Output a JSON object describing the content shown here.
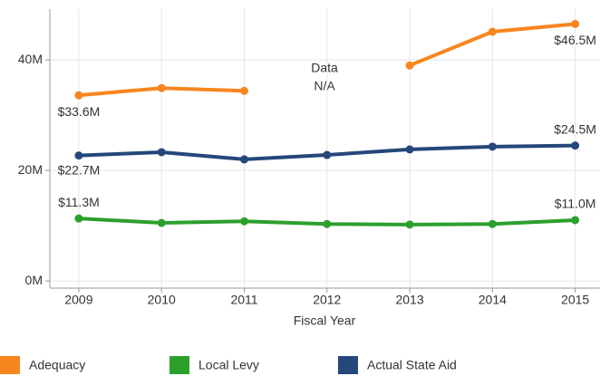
{
  "chart_data": {
    "type": "line",
    "x_label": "Fiscal Year",
    "x": [
      2009,
      2010,
      2011,
      2012,
      2013,
      2014,
      2015
    ],
    "xlim": [
      2008.65,
      2015.3
    ],
    "xticks": [
      2009,
      2010,
      2011,
      2012,
      2013,
      2014,
      2015
    ],
    "ylim": [
      -1.3,
      49.2
    ],
    "yticks": [
      {
        "value": 0,
        "label": "0M"
      },
      {
        "value": 20,
        "label": "20M"
      },
      {
        "value": 40,
        "label": "40M"
      }
    ],
    "grid": true,
    "legend": "bottom",
    "annotation": [
      "Data",
      "N/A"
    ],
    "series": [
      {
        "name": "Adequacy",
        "color": "#f7861f",
        "values": [
          33.6,
          34.9,
          34.4,
          null,
          39.0,
          45.1,
          46.5
        ],
        "value_labels": [
          "$33.6M",
          null,
          null,
          null,
          null,
          null,
          "$46.5M"
        ]
      },
      {
        "name": "Local Levy",
        "color": "#2ca02c",
        "values": [
          11.3,
          10.5,
          10.8,
          10.3,
          10.2,
          10.3,
          11.0
        ],
        "value_labels": [
          "$11.3M",
          null,
          null,
          null,
          null,
          null,
          "$11.0M"
        ]
      },
      {
        "name": "Actual State Aid",
        "color": "#25477a",
        "values": [
          22.7,
          23.3,
          22.0,
          22.8,
          23.8,
          24.3,
          24.5
        ],
        "value_labels": [
          "$22.7M",
          null,
          null,
          null,
          null,
          null,
          "$24.5M"
        ]
      }
    ]
  }
}
